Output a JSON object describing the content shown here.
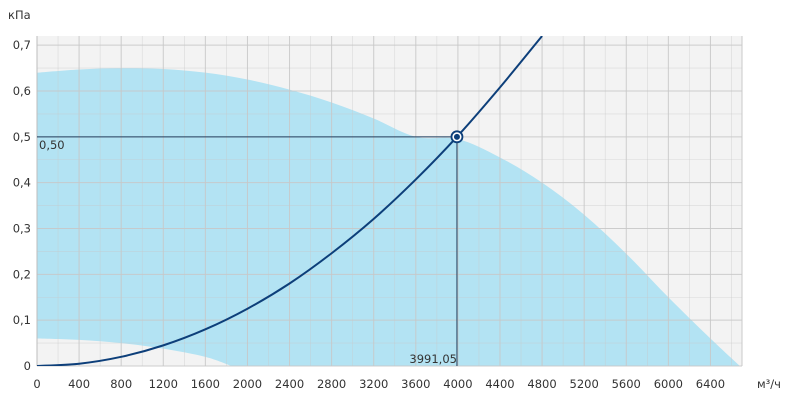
{
  "chart_data": {
    "type": "line",
    "xlabel": "м³/ч",
    "ylabel": "кПа",
    "xlim": [
      0,
      6700
    ],
    "ylim": [
      0,
      0.72
    ],
    "grid": true,
    "x_ticks": [
      0,
      400,
      800,
      1200,
      1600,
      2000,
      2400,
      2800,
      3200,
      3600,
      4000,
      4400,
      4800,
      5200,
      5600,
      6000,
      6400
    ],
    "x_tick_labels": [
      "0",
      "400",
      "800",
      "1200",
      "1600",
      "2000",
      "2400",
      "2800",
      "3200",
      "3600",
      "4000",
      "4400",
      "4800",
      "5200",
      "5600",
      "6000",
      "6400"
    ],
    "y_ticks": [
      0,
      0.1,
      0.2,
      0.3,
      0.4,
      0.5,
      0.6,
      0.7
    ],
    "y_tick_labels": [
      "0",
      "0,1",
      "0,2",
      "0,3",
      "0,4",
      "0,5",
      "0,6",
      "0,7"
    ],
    "colors": {
      "operating_area": "#b3e3f3",
      "system_curve": "#0d3f7a",
      "grid": "#c8c8c8",
      "plot_background": "#f3f3f3",
      "crosshair": "#1f3f5f"
    },
    "operating_area": {
      "upper": {
        "x": [
          0,
          400,
          800,
          1200,
          1600,
          2000,
          2400,
          2800,
          3200,
          3600,
          4000,
          4400,
          4800,
          5200,
          5600,
          6000,
          6400,
          6680
        ],
        "y": [
          0.64,
          0.647,
          0.65,
          0.648,
          0.64,
          0.625,
          0.603,
          0.575,
          0.54,
          0.5,
          0.495,
          0.455,
          0.4,
          0.33,
          0.245,
          0.15,
          0.06,
          0.0
        ]
      },
      "lower": {
        "x": [
          0,
          400,
          800,
          1200,
          1600,
          1850
        ],
        "y": [
          0.06,
          0.057,
          0.05,
          0.038,
          0.02,
          0.0
        ]
      }
    },
    "series": [
      {
        "type": "system_curve",
        "x": [
          0,
          400,
          800,
          1200,
          1600,
          2000,
          2400,
          2800,
          3200,
          3600,
          3991.05,
          4400,
          4800
        ],
        "y": [
          0,
          0.005,
          0.02,
          0.045,
          0.08,
          0.125,
          0.18,
          0.246,
          0.321,
          0.407,
          0.5,
          0.608,
          0.72
        ]
      }
    ],
    "operating_point": {
      "x": 3991.05,
      "y": 0.5,
      "x_label": "3991,05",
      "y_label": "0,50"
    }
  }
}
